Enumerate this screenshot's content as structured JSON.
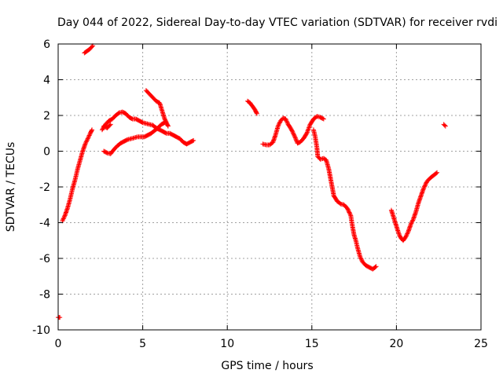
{
  "chart_data": {
    "type": "scatter",
    "title": "Day 044 of 2022, Sidereal Day-to-day VTEC variation (SDTVAR) for receiver rvdi",
    "xlabel": "GPS time / hours",
    "ylabel": "SDTVAR / TECUs",
    "xlim": [
      0,
      25
    ],
    "ylim": [
      -10,
      6
    ],
    "xticks": [
      0,
      5,
      10,
      15,
      20,
      25
    ],
    "yticks": [
      -10,
      -8,
      -6,
      -4,
      -2,
      0,
      2,
      4,
      6
    ],
    "grid": true,
    "marker": "+",
    "color": "#ff0000",
    "series": [
      {
        "name": "SDTVAR",
        "segments": [
          [
            [
              0.0,
              -9.3
            ],
            [
              0.1,
              -9.3
            ]
          ],
          [
            [
              0.25,
              -3.9
            ],
            [
              0.4,
              -3.6
            ],
            [
              0.55,
              -3.2
            ],
            [
              0.7,
              -2.7
            ],
            [
              0.85,
              -2.1
            ],
            [
              1.0,
              -1.6
            ],
            [
              1.15,
              -1.0
            ],
            [
              1.3,
              -0.5
            ],
            [
              1.45,
              0.0
            ],
            [
              1.6,
              0.4
            ],
            [
              1.75,
              0.7
            ],
            [
              1.9,
              1.0
            ],
            [
              2.0,
              1.2
            ]
          ],
          [
            [
              1.55,
              5.5
            ],
            [
              1.7,
              5.6
            ],
            [
              1.85,
              5.7
            ],
            [
              2.0,
              5.85
            ],
            [
              2.05,
              5.9
            ]
          ],
          [
            [
              2.6,
              1.2
            ],
            [
              2.8,
              1.5
            ],
            [
              3.0,
              1.7
            ],
            [
              3.2,
              1.8
            ],
            [
              3.4,
              2.0
            ],
            [
              3.6,
              2.15
            ],
            [
              3.8,
              2.2
            ],
            [
              4.0,
              2.1
            ],
            [
              4.2,
              1.9
            ],
            [
              4.4,
              1.8
            ],
            [
              4.6,
              1.8
            ],
            [
              4.8,
              1.7
            ],
            [
              5.0,
              1.6
            ],
            [
              5.2,
              1.55
            ],
            [
              5.4,
              1.5
            ],
            [
              5.6,
              1.45
            ],
            [
              5.8,
              1.3
            ],
            [
              6.0,
              1.2
            ],
            [
              6.2,
              1.1
            ],
            [
              6.4,
              1.0
            ],
            [
              6.6,
              1.0
            ],
            [
              6.8,
              0.9
            ],
            [
              7.0,
              0.8
            ],
            [
              7.2,
              0.7
            ],
            [
              7.4,
              0.5
            ],
            [
              7.6,
              0.4
            ],
            [
              7.8,
              0.5
            ],
            [
              8.0,
              0.6
            ]
          ],
          [
            [
              2.7,
              0.0
            ],
            [
              2.9,
              -0.1
            ],
            [
              3.1,
              -0.15
            ],
            [
              3.3,
              0.1
            ],
            [
              3.5,
              0.3
            ],
            [
              3.7,
              0.45
            ],
            [
              3.9,
              0.55
            ],
            [
              4.1,
              0.65
            ],
            [
              4.3,
              0.7
            ],
            [
              4.5,
              0.75
            ],
            [
              4.7,
              0.8
            ],
            [
              4.9,
              0.8
            ],
            [
              5.1,
              0.8
            ],
            [
              5.3,
              0.9
            ],
            [
              5.5,
              1.0
            ],
            [
              5.7,
              1.15
            ],
            [
              5.9,
              1.3
            ],
            [
              6.1,
              1.5
            ],
            [
              6.3,
              1.6
            ]
          ],
          [
            [
              5.2,
              3.4
            ],
            [
              5.4,
              3.2
            ],
            [
              5.6,
              3.0
            ],
            [
              5.8,
              2.8
            ],
            [
              6.0,
              2.7
            ],
            [
              6.1,
              2.4
            ],
            [
              6.2,
              2.1
            ],
            [
              6.3,
              1.8
            ],
            [
              6.4,
              1.6
            ],
            [
              6.5,
              1.4
            ]
          ],
          [
            [
              2.7,
              1.4
            ],
            [
              2.9,
              1.3
            ],
            [
              3.1,
              1.5
            ]
          ],
          [
            [
              11.2,
              2.8
            ],
            [
              11.35,
              2.7
            ],
            [
              11.5,
              2.5
            ],
            [
              11.65,
              2.3
            ],
            [
              11.75,
              2.1
            ]
          ],
          [
            [
              12.1,
              0.4
            ],
            [
              12.3,
              0.35
            ],
            [
              12.5,
              0.35
            ],
            [
              12.7,
              0.5
            ],
            [
              12.85,
              0.9
            ],
            [
              13.0,
              1.4
            ],
            [
              13.15,
              1.7
            ],
            [
              13.3,
              1.85
            ],
            [
              13.45,
              1.8
            ],
            [
              13.6,
              1.5
            ],
            [
              13.8,
              1.2
            ],
            [
              14.0,
              0.8
            ],
            [
              14.15,
              0.45
            ],
            [
              14.3,
              0.5
            ],
            [
              14.5,
              0.7
            ],
            [
              14.7,
              1.0
            ],
            [
              14.9,
              1.5
            ],
            [
              15.1,
              1.8
            ],
            [
              15.3,
              1.95
            ],
            [
              15.5,
              1.9
            ],
            [
              15.7,
              1.8
            ]
          ],
          [
            [
              15.1,
              1.2
            ],
            [
              15.2,
              0.8
            ],
            [
              15.3,
              0.2
            ],
            [
              15.35,
              -0.3
            ],
            [
              15.5,
              -0.45
            ],
            [
              15.7,
              -0.4
            ],
            [
              15.85,
              -0.5
            ],
            [
              16.0,
              -1.0
            ],
            [
              16.1,
              -1.5
            ],
            [
              16.2,
              -2.0
            ],
            [
              16.3,
              -2.5
            ],
            [
              16.5,
              -2.8
            ],
            [
              16.7,
              -2.95
            ],
            [
              16.9,
              -3.0
            ],
            [
              17.1,
              -3.2
            ],
            [
              17.3,
              -3.6
            ],
            [
              17.4,
              -4.2
            ],
            [
              17.5,
              -4.7
            ],
            [
              17.6,
              -5.0
            ],
            [
              17.7,
              -5.4
            ],
            [
              17.85,
              -5.9
            ],
            [
              18.0,
              -6.2
            ],
            [
              18.2,
              -6.4
            ],
            [
              18.4,
              -6.5
            ],
            [
              18.6,
              -6.6
            ],
            [
              18.8,
              -6.45
            ]
          ],
          [
            [
              19.7,
              -3.3
            ],
            [
              19.8,
              -3.6
            ],
            [
              19.9,
              -3.9
            ],
            [
              20.0,
              -4.2
            ],
            [
              20.1,
              -4.5
            ],
            [
              20.2,
              -4.75
            ],
            [
              20.3,
              -4.9
            ],
            [
              20.4,
              -5.0
            ],
            [
              20.55,
              -4.8
            ],
            [
              20.7,
              -4.5
            ],
            [
              20.85,
              -4.1
            ],
            [
              21.0,
              -3.8
            ],
            [
              21.15,
              -3.4
            ],
            [
              21.3,
              -2.9
            ],
            [
              21.45,
              -2.5
            ],
            [
              21.6,
              -2.1
            ],
            [
              21.8,
              -1.7
            ],
            [
              22.0,
              -1.5
            ],
            [
              22.2,
              -1.35
            ],
            [
              22.4,
              -1.2
            ]
          ],
          [
            [
              22.8,
              1.5
            ],
            [
              22.9,
              1.4
            ]
          ]
        ]
      }
    ]
  }
}
